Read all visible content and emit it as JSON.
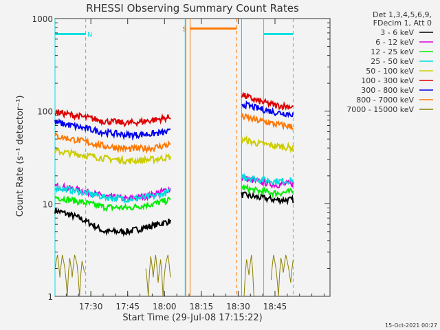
{
  "chart_data": {
    "type": "line",
    "title": "RHESSI Observing Summary Count Rates",
    "xlabel": "Start Time (29-Jul-08 17:15:22)",
    "ylabel": "Count Rate (s⁻¹ detector⁻¹)",
    "x_unit": "minutes after 17:15:22",
    "xlim": [
      0,
      112
    ],
    "ylim": [
      1,
      1000
    ],
    "y_scale": "log",
    "x_ticks": [
      {
        "x": 14.6,
        "label": "17:30"
      },
      {
        "x": 29.6,
        "label": "17:45"
      },
      {
        "x": 44.6,
        "label": "18:00"
      },
      {
        "x": 59.6,
        "label": "18:15"
      },
      {
        "x": 74.6,
        "label": "18:30"
      },
      {
        "x": 89.6,
        "label": "18:45"
      }
    ],
    "y_ticks": [
      {
        "y": 1,
        "label": "1"
      },
      {
        "y": 10,
        "label": "10"
      },
      {
        "y": 100,
        "label": "100"
      },
      {
        "y": 1000,
        "label": "1000"
      }
    ],
    "legend_header": [
      "Det 1,3,4,5,6,9,",
      "FDecim 1, Att 0"
    ],
    "legend_position": "top-right",
    "series": [
      {
        "name": "3 - 6 keV",
        "color": "#000000",
        "segments": [
          {
            "x": [
              0,
              10,
              20,
              30,
              40,
              47
            ],
            "y": [
              8.5,
              7.0,
              5.0,
              5.0,
              5.8,
              6.5
            ]
          },
          {
            "x": [
              76,
              82,
              90,
              97
            ],
            "y": [
              12.5,
              11.8,
              11.0,
              11.0
            ]
          }
        ]
      },
      {
        "name": "6 - 12 keV",
        "color": "#dd00dd",
        "segments": [
          {
            "x": [
              0,
              10,
              20,
              30,
              40,
              47
            ],
            "y": [
              15.5,
              14.0,
              12.0,
              11.2,
              12.5,
              14.5
            ]
          },
          {
            "x": [
              76,
              82,
              90,
              97
            ],
            "y": [
              19.0,
              17.5,
              16.0,
              16.5
            ]
          }
        ]
      },
      {
        "name": "12 - 25 keV",
        "color": "#00ee00",
        "segments": [
          {
            "x": [
              0,
              10,
              20,
              30,
              40,
              47
            ],
            "y": [
              11.8,
              10.5,
              9.2,
              9.0,
              10.0,
              11.0
            ]
          },
          {
            "x": [
              76,
              82,
              90,
              97
            ],
            "y": [
              15.0,
              13.8,
              13.0,
              13.5
            ]
          }
        ]
      },
      {
        "name": "25 - 50 keV",
        "color": "#00dddd",
        "segments": [
          {
            "x": [
              0,
              10,
              20,
              30,
              40,
              47
            ],
            "y": [
              15.0,
              13.5,
              11.8,
              11.2,
              12.0,
              13.5
            ]
          },
          {
            "x": [
              76,
              82,
              90,
              97
            ],
            "y": [
              20.0,
              18.5,
              17.5,
              17.8
            ]
          }
        ]
      },
      {
        "name": "50 - 100 keV",
        "color": "#cccc00",
        "segments": [
          {
            "x": [
              0,
              10,
              20,
              30,
              40,
              47
            ],
            "y": [
              37,
              34,
              31,
              29,
              30,
              32
            ]
          },
          {
            "x": [
              76,
              82,
              90,
              97
            ],
            "y": [
              50,
              45,
              42,
              40
            ]
          }
        ]
      },
      {
        "name": "100 - 300 keV",
        "color": "#dd0000",
        "segments": [
          {
            "x": [
              0,
              10,
              20,
              30,
              40,
              47
            ],
            "y": [
              98,
              88,
              78,
              74,
              80,
              86
            ]
          },
          {
            "x": [
              76,
              82,
              90,
              97
            ],
            "y": [
              150,
              130,
              115,
              112
            ]
          }
        ]
      },
      {
        "name": "300 - 800 keV",
        "color": "#0000ee",
        "segments": [
          {
            "x": [
              0,
              10,
              20,
              30,
              40,
              47
            ],
            "y": [
              76,
              67,
              59,
              55,
              57,
              60
            ]
          },
          {
            "x": [
              76,
              82,
              90,
              97
            ],
            "y": [
              120,
              108,
              97,
              93
            ]
          }
        ]
      },
      {
        "name": "800 - 7000 keV",
        "color": "#ff7700",
        "segments": [
          {
            "x": [
              0,
              10,
              20,
              30,
              40,
              47
            ],
            "y": [
              54,
              48,
              42,
              39,
              40,
              44
            ]
          },
          {
            "x": [
              76,
              82,
              90,
              97
            ],
            "y": [
              88,
              80,
              72,
              68
            ]
          }
        ]
      },
      {
        "name": "7000 - 15000 keV",
        "color": "#8b8000",
        "segments": [
          {
            "x": [
              0,
              1,
              2,
              3,
              4,
              5,
              6,
              7,
              8,
              9,
              10,
              11,
              12
            ],
            "y": [
              2,
              2.8,
              1.6,
              2.8,
              2,
              1,
              2.6,
              1.6,
              2.8,
              2.2,
              1,
              2.4,
              1.8
            ]
          },
          {
            "x": [
              37,
              38,
              39,
              40,
              41,
              42,
              43,
              44,
              45,
              46,
              47
            ],
            "y": [
              2,
              1,
              2.7,
              1.6,
              2.8,
              1.4,
              2.5,
              1,
              2.2,
              2.8,
              1.6
            ]
          },
          {
            "x": [
              77,
              78,
              79,
              80,
              81
            ],
            "y": [
              1,
              2.5,
              1.7,
              2.8,
              1
            ]
          },
          {
            "x": [
              88,
              89,
              90,
              91,
              92,
              93,
              94,
              95,
              96,
              97
            ],
            "y": [
              1.5,
              2.8,
              2,
              1,
              2.6,
              1.8,
              2.8,
              2.1,
              1.4,
              2.5
            ]
          }
        ]
      }
    ],
    "annotations": [
      {
        "label": "N",
        "color": "#00e0e0",
        "bar": [
          0,
          12.5
        ],
        "level": 680,
        "start_line": 0,
        "end_line": 12.5,
        "end_dashed": true
      },
      {
        "label": "",
        "color": "#00e0e0",
        "bar": [
          85,
          97
        ],
        "level": 680,
        "start_line": 85,
        "end_line": 97,
        "end_dashed": true
      },
      {
        "label": "S",
        "color": "#ff7700",
        "bar": [
          55,
          74
        ],
        "level": 780,
        "start_line": 55,
        "end_line": 74,
        "end_dashed": true
      },
      {
        "label": "",
        "color": "#00e0e0",
        "bar": null,
        "level": null,
        "start_line": 53,
        "end_line": null,
        "end_dashed": false
      },
      {
        "label": "",
        "color": "#ff7700",
        "bar": null,
        "level": null,
        "start_line": 53.3,
        "end_line": null,
        "end_dashed": false
      },
      {
        "label": "",
        "color": "#ff7700",
        "bar": null,
        "level": null,
        "start_line": 76,
        "end_line": null,
        "end_dashed": true
      }
    ],
    "timestamp": "15-Oct-2021 00:27"
  }
}
